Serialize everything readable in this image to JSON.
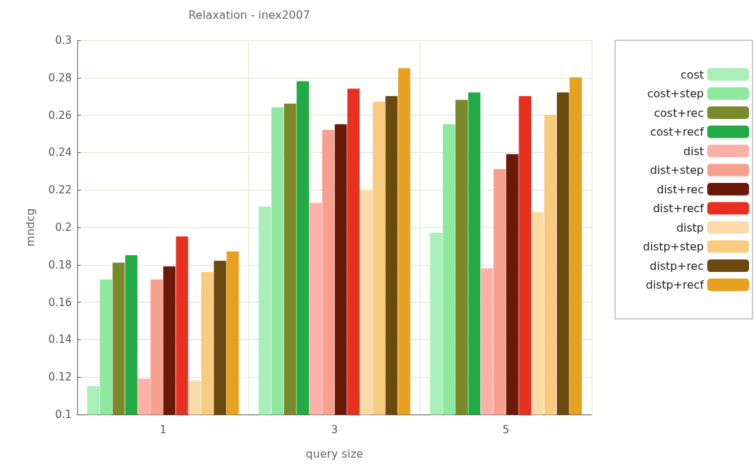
{
  "chart_data": {
    "type": "bar",
    "title": "Relaxation - inex2007",
    "xlabel": "query size",
    "ylabel": "mndcg",
    "categories": [
      "1",
      "3",
      "5"
    ],
    "ylim": [
      0.1,
      0.3
    ],
    "yticks": [
      0.1,
      0.12,
      0.14,
      0.16,
      0.18,
      0.2,
      0.22,
      0.24,
      0.26,
      0.28,
      0.3
    ],
    "grid": true,
    "legend": "right",
    "series": [
      {
        "name": "cost",
        "color": "#a8efb8",
        "values": [
          0.115,
          0.211,
          0.197
        ]
      },
      {
        "name": "cost+step",
        "color": "#8ee8a0",
        "values": [
          0.172,
          0.264,
          0.255
        ]
      },
      {
        "name": "cost+rec",
        "color": "#7a8a2a",
        "values": [
          0.181,
          0.266,
          0.268
        ]
      },
      {
        "name": "cost+recf",
        "color": "#22aa44",
        "values": [
          0.185,
          0.278,
          0.272
        ]
      },
      {
        "name": "dist",
        "color": "#fbb0a8",
        "values": [
          0.119,
          0.213,
          0.178
        ]
      },
      {
        "name": "dist+step",
        "color": "#f8a090",
        "values": [
          0.172,
          0.252,
          0.231
        ]
      },
      {
        "name": "dist+rec",
        "color": "#6b1a0a",
        "values": [
          0.179,
          0.255,
          0.239
        ]
      },
      {
        "name": "dist+recf",
        "color": "#e83020",
        "values": [
          0.195,
          0.274,
          0.27
        ]
      },
      {
        "name": "distp",
        "color": "#fbdca8",
        "values": [
          0.118,
          0.22,
          0.208
        ]
      },
      {
        "name": "distp+step",
        "color": "#f8cc80",
        "values": [
          0.176,
          0.267,
          0.26
        ]
      },
      {
        "name": "distp+rec",
        "color": "#6b4a10",
        "values": [
          0.182,
          0.27,
          0.272
        ]
      },
      {
        "name": "distp+recf",
        "color": "#e8a020",
        "values": [
          0.187,
          0.285,
          0.28
        ]
      }
    ]
  }
}
